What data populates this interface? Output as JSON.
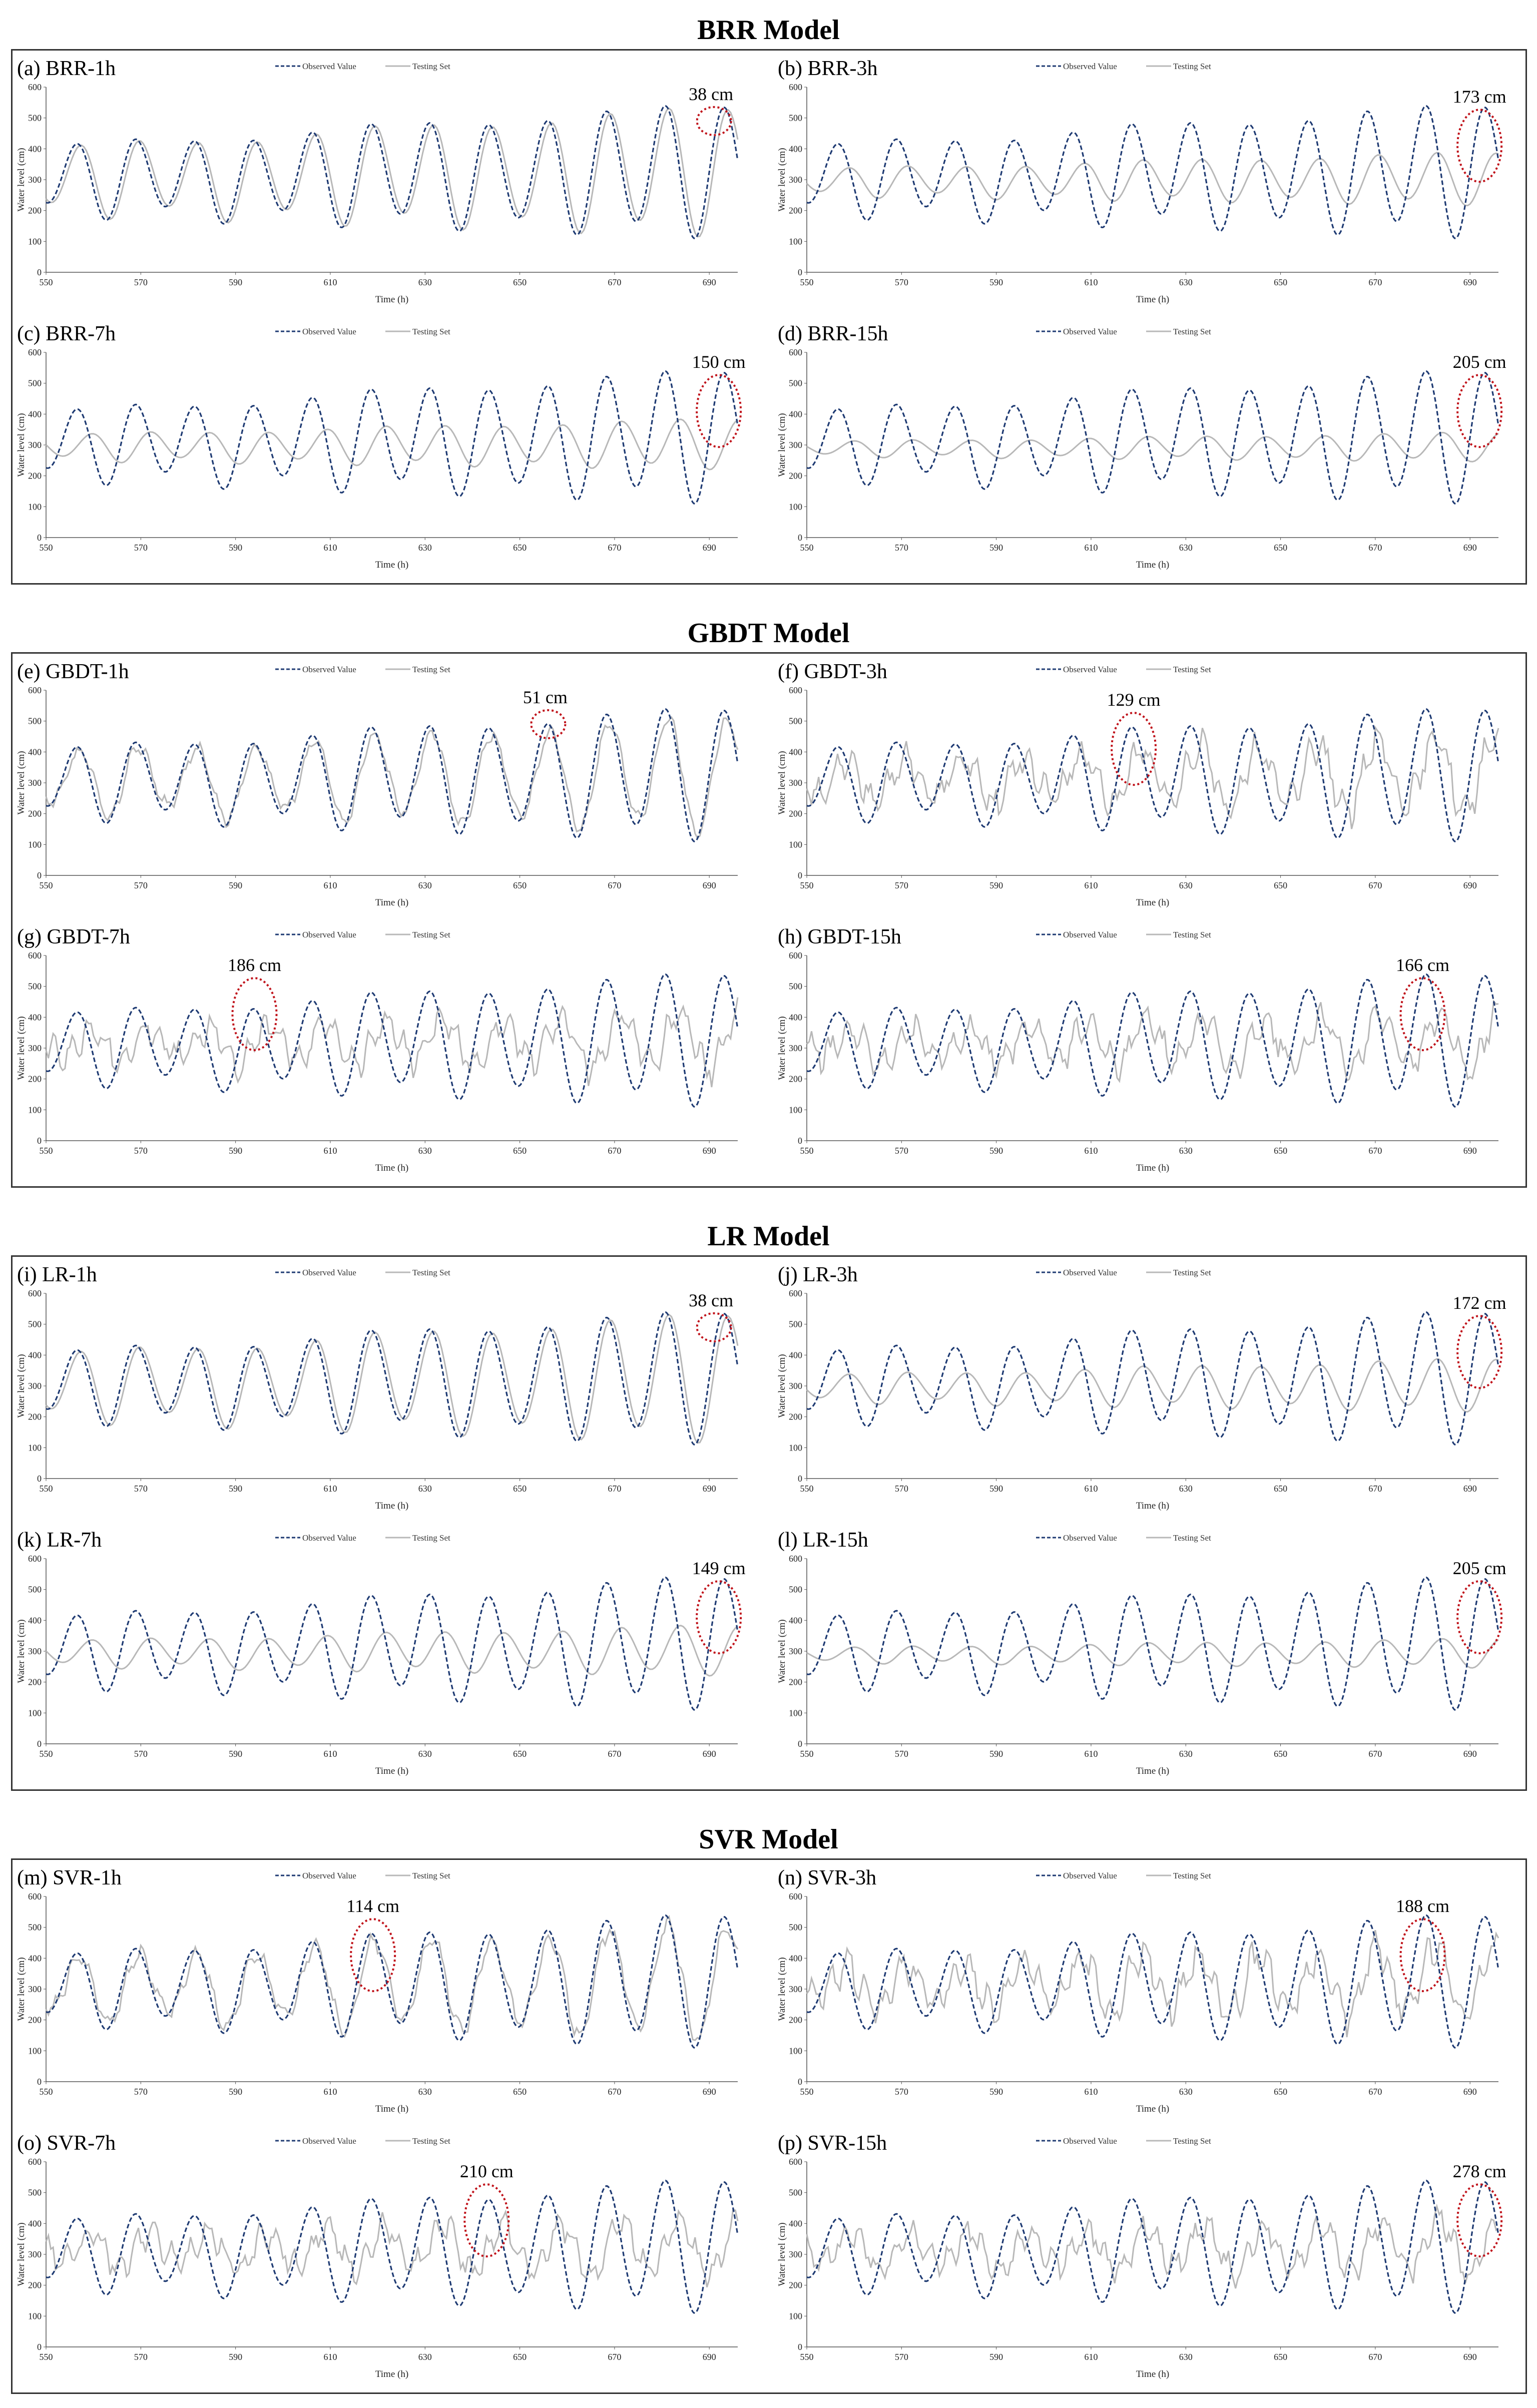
{
  "colors": {
    "observed": "#1f3b73",
    "testing": "#b8b8b8",
    "circle": "#c0131b",
    "axis": "#555555"
  },
  "groups": [
    {
      "title": "BRR Model"
    },
    {
      "title": "GBDT Model"
    },
    {
      "title": "LR Model"
    },
    {
      "title": "SVR Model"
    }
  ],
  "legend": {
    "observed": "Observed Value",
    "testing": "Testing Set"
  },
  "chart_data": [
    {
      "type": "line",
      "id": "a",
      "label": "(a) BRR-1h",
      "title": "BRR-1h",
      "group": "BRR Model",
      "horizon_h": 1,
      "xlabel": "Time (h)",
      "ylabel": "Water level (cm)",
      "xlim": [
        550,
        696
      ],
      "ylim": [
        0,
        600
      ],
      "xticks": [
        550,
        570,
        590,
        610,
        630,
        650,
        670,
        690
      ],
      "yticks": [
        0,
        100,
        200,
        300,
        400,
        500,
        600
      ],
      "series": [
        {
          "name": "Observed Value",
          "pattern": "tidal cycle ~12.4 h, peaks ≈400–540 cm, troughs ≈130–210 cm"
        },
        {
          "name": "Testing Set",
          "pattern": "tracks observed closely"
        }
      ],
      "annotation": {
        "text": "38 cm",
        "x": 691
      }
    },
    {
      "type": "line",
      "id": "b",
      "label": "(b) BRR-3h",
      "title": "BRR-3h",
      "group": "BRR Model",
      "horizon_h": 3,
      "xlabel": "Time (h)",
      "ylabel": "Water level (cm)",
      "xlim": [
        550,
        696
      ],
      "ylim": [
        0,
        600
      ],
      "xticks": [
        550,
        570,
        590,
        610,
        630,
        650,
        670,
        690
      ],
      "yticks": [
        0,
        100,
        200,
        300,
        400,
        500,
        600
      ],
      "series": [
        {
          "name": "Observed Value",
          "pattern": "tidal cycle"
        },
        {
          "name": "Testing Set",
          "pattern": "damped, lagged"
        }
      ],
      "annotation": {
        "text": "173 cm",
        "x": 692
      }
    },
    {
      "type": "line",
      "id": "c",
      "label": "(c) BRR-7h",
      "title": "BRR-7h",
      "group": "BRR Model",
      "horizon_h": 7,
      "xlabel": "Time (h)",
      "ylabel": "Water level (cm)",
      "xlim": [
        550,
        696
      ],
      "ylim": [
        0,
        600
      ],
      "xticks": [
        550,
        570,
        590,
        610,
        630,
        650,
        670,
        690
      ],
      "yticks": [
        0,
        100,
        200,
        300,
        400,
        500,
        600
      ],
      "series": [
        {
          "name": "Observed Value",
          "pattern": "tidal cycle"
        },
        {
          "name": "Testing Set",
          "pattern": "damped, lagged"
        }
      ],
      "annotation": {
        "text": "150 cm",
        "x": 692
      }
    },
    {
      "type": "line",
      "id": "d",
      "label": "(d) BRR-15h",
      "title": "BRR-15h",
      "group": "BRR Model",
      "horizon_h": 15,
      "xlabel": "Time (h)",
      "ylabel": "Water level (cm)",
      "xlim": [
        550,
        696
      ],
      "ylim": [
        0,
        600
      ],
      "xticks": [
        550,
        570,
        590,
        610,
        630,
        650,
        670,
        690
      ],
      "yticks": [
        0,
        100,
        200,
        300,
        400,
        500,
        600
      ],
      "series": [
        {
          "name": "Observed Value",
          "pattern": "tidal cycle"
        },
        {
          "name": "Testing Set",
          "pattern": "nearly flat around 290 cm"
        }
      ],
      "annotation": {
        "text": "205 cm",
        "x": 692
      }
    },
    {
      "type": "line",
      "id": "e",
      "label": "(e) GBDT-1h",
      "title": "GBDT-1h",
      "group": "GBDT Model",
      "horizon_h": 1,
      "xlabel": "Time (h)",
      "ylabel": "Water level (cm)",
      "xlim": [
        550,
        696
      ],
      "ylim": [
        0,
        600
      ],
      "xticks": [
        550,
        570,
        590,
        610,
        630,
        650,
        670,
        690
      ],
      "yticks": [
        0,
        100,
        200,
        300,
        400,
        500,
        600
      ],
      "series": [
        {
          "name": "Observed Value",
          "pattern": "tidal cycle"
        },
        {
          "name": "Testing Set",
          "pattern": "close with noise"
        }
      ],
      "annotation": {
        "text": "51 cm",
        "x": 656
      }
    },
    {
      "type": "line",
      "id": "f",
      "label": "(f) GBDT-3h",
      "title": "GBDT-3h",
      "group": "GBDT Model",
      "horizon_h": 3,
      "xlabel": "Time (h)",
      "ylabel": "Water level (cm)",
      "xlim": [
        550,
        696
      ],
      "ylim": [
        0,
        600
      ],
      "xticks": [
        550,
        570,
        590,
        610,
        630,
        650,
        670,
        690
      ],
      "yticks": [
        0,
        100,
        200,
        300,
        400,
        500,
        600
      ],
      "series": [
        {
          "name": "Observed Value",
          "pattern": "tidal cycle"
        },
        {
          "name": "Testing Set",
          "pattern": "noisy"
        }
      ],
      "annotation": {
        "text": "129 cm",
        "x": 619
      }
    },
    {
      "type": "line",
      "id": "g",
      "label": "(g) GBDT-7h",
      "title": "GBDT-7h",
      "group": "GBDT Model",
      "horizon_h": 7,
      "xlabel": "Time (h)",
      "ylabel": "Water level (cm)",
      "xlim": [
        550,
        696
      ],
      "ylim": [
        0,
        600
      ],
      "xticks": [
        550,
        570,
        590,
        610,
        630,
        650,
        670,
        690
      ],
      "yticks": [
        0,
        100,
        200,
        300,
        400,
        500,
        600
      ],
      "series": [
        {
          "name": "Observed Value",
          "pattern": "tidal cycle"
        },
        {
          "name": "Testing Set",
          "pattern": "noisy, damped"
        }
      ],
      "annotation": {
        "text": "186 cm",
        "x": 594
      }
    },
    {
      "type": "line",
      "id": "h",
      "label": "(h) GBDT-15h",
      "title": "GBDT-15h",
      "group": "GBDT Model",
      "horizon_h": 15,
      "xlabel": "Time (h)",
      "ylabel": "Water level (cm)",
      "xlim": [
        550,
        696
      ],
      "ylim": [
        0,
        600
      ],
      "xticks": [
        550,
        570,
        590,
        610,
        630,
        650,
        670,
        690
      ],
      "yticks": [
        0,
        100,
        200,
        300,
        400,
        500,
        600
      ],
      "series": [
        {
          "name": "Observed Value",
          "pattern": "tidal cycle"
        },
        {
          "name": "Testing Set",
          "pattern": "noisy"
        }
      ],
      "annotation": {
        "text": "166 cm",
        "x": 680
      }
    },
    {
      "type": "line",
      "id": "i",
      "label": "(i) LR-1h",
      "title": "LR-1h",
      "group": "LR Model",
      "horizon_h": 1,
      "xlabel": "Time (h)",
      "ylabel": "Water level (cm)",
      "xlim": [
        550,
        696
      ],
      "ylim": [
        0,
        600
      ],
      "xticks": [
        550,
        570,
        590,
        610,
        630,
        650,
        670,
        690
      ],
      "yticks": [
        0,
        100,
        200,
        300,
        400,
        500,
        600
      ],
      "series": [
        {
          "name": "Observed Value",
          "pattern": "tidal cycle"
        },
        {
          "name": "Testing Set",
          "pattern": "tracks observed closely"
        }
      ],
      "annotation": {
        "text": "38 cm",
        "x": 691
      }
    },
    {
      "type": "line",
      "id": "j",
      "label": "(j) LR-3h",
      "title": "LR-3h",
      "group": "LR Model",
      "horizon_h": 3,
      "xlabel": "Time (h)",
      "ylabel": "Water level (cm)",
      "xlim": [
        550,
        696
      ],
      "ylim": [
        0,
        600
      ],
      "xticks": [
        550,
        570,
        590,
        610,
        630,
        650,
        670,
        690
      ],
      "yticks": [
        0,
        100,
        200,
        300,
        400,
        500,
        600
      ],
      "series": [
        {
          "name": "Observed Value",
          "pattern": "tidal cycle"
        },
        {
          "name": "Testing Set",
          "pattern": "damped, lagged"
        }
      ],
      "annotation": {
        "text": "172 cm",
        "x": 692
      }
    },
    {
      "type": "line",
      "id": "k",
      "label": "(k) LR-7h",
      "title": "LR-7h",
      "group": "LR Model",
      "horizon_h": 7,
      "xlabel": "Time (h)",
      "ylabel": "Water level (cm)",
      "xlim": [
        550,
        696
      ],
      "ylim": [
        0,
        600
      ],
      "xticks": [
        550,
        570,
        590,
        610,
        630,
        650,
        670,
        690
      ],
      "yticks": [
        0,
        100,
        200,
        300,
        400,
        500,
        600
      ],
      "series": [
        {
          "name": "Observed Value",
          "pattern": "tidal cycle"
        },
        {
          "name": "Testing Set",
          "pattern": "damped, lagged"
        }
      ],
      "annotation": {
        "text": "149 cm",
        "x": 692
      }
    },
    {
      "type": "line",
      "id": "l",
      "label": "(l) LR-15h",
      "title": "LR-15h",
      "group": "LR Model",
      "horizon_h": 15,
      "xlabel": "Time (h)",
      "ylabel": "Water level (cm)",
      "xlim": [
        550,
        696
      ],
      "ylim": [
        0,
        600
      ],
      "xticks": [
        550,
        570,
        590,
        610,
        630,
        650,
        670,
        690
      ],
      "yticks": [
        0,
        100,
        200,
        300,
        400,
        500,
        600
      ],
      "series": [
        {
          "name": "Observed Value",
          "pattern": "tidal cycle"
        },
        {
          "name": "Testing Set",
          "pattern": "nearly flat around 290 cm"
        }
      ],
      "annotation": {
        "text": "205 cm",
        "x": 692
      }
    },
    {
      "type": "line",
      "id": "m",
      "label": "(m) SVR-1h",
      "title": "SVR-1h",
      "group": "SVR Model",
      "horizon_h": 1,
      "xlabel": "Time (h)",
      "ylabel": "Water level (cm)",
      "xlim": [
        550,
        696
      ],
      "ylim": [
        0,
        600
      ],
      "xticks": [
        550,
        570,
        590,
        610,
        630,
        650,
        670,
        690
      ],
      "yticks": [
        0,
        100,
        200,
        300,
        400,
        500,
        600
      ],
      "series": [
        {
          "name": "Observed Value",
          "pattern": "tidal cycle"
        },
        {
          "name": "Testing Set",
          "pattern": "noisy"
        }
      ],
      "annotation": {
        "text": "114 cm",
        "x": 619
      }
    },
    {
      "type": "line",
      "id": "n",
      "label": "(n) SVR-3h",
      "title": "SVR-3h",
      "group": "SVR Model",
      "horizon_h": 3,
      "xlabel": "Time (h)",
      "ylabel": "Water level (cm)",
      "xlim": [
        550,
        696
      ],
      "ylim": [
        0,
        600
      ],
      "xticks": [
        550,
        570,
        590,
        610,
        630,
        650,
        670,
        690
      ],
      "yticks": [
        0,
        100,
        200,
        300,
        400,
        500,
        600
      ],
      "series": [
        {
          "name": "Observed Value",
          "pattern": "tidal cycle"
        },
        {
          "name": "Testing Set",
          "pattern": "noisy"
        }
      ],
      "annotation": {
        "text": "188 cm",
        "x": 680
      }
    },
    {
      "type": "line",
      "id": "o",
      "label": "(o) SVR-7h",
      "title": "SVR-7h",
      "group": "SVR Model",
      "horizon_h": 7,
      "xlabel": "Time (h)",
      "ylabel": "Water level (cm)",
      "xlim": [
        550,
        696
      ],
      "ylim": [
        0,
        600
      ],
      "xticks": [
        550,
        570,
        590,
        610,
        630,
        650,
        670,
        690
      ],
      "yticks": [
        0,
        100,
        200,
        300,
        400,
        500,
        600
      ],
      "series": [
        {
          "name": "Observed Value",
          "pattern": "tidal cycle"
        },
        {
          "name": "Testing Set",
          "pattern": "noisy, damped"
        }
      ],
      "annotation": {
        "text": "210 cm",
        "x": 643
      }
    },
    {
      "type": "line",
      "id": "p",
      "label": "(p) SVR-15h",
      "title": "SVR-15h",
      "group": "SVR Model",
      "horizon_h": 15,
      "xlabel": "Time (h)",
      "ylabel": "Water level (cm)",
      "xlim": [
        550,
        696
      ],
      "ylim": [
        0,
        600
      ],
      "xticks": [
        550,
        570,
        590,
        610,
        630,
        650,
        670,
        690
      ],
      "yticks": [
        0,
        100,
        200,
        300,
        400,
        500,
        600
      ],
      "series": [
        {
          "name": "Observed Value",
          "pattern": "tidal cycle"
        },
        {
          "name": "Testing Set",
          "pattern": "noisy"
        }
      ],
      "annotation": {
        "text": "278 cm",
        "x": 692
      }
    }
  ]
}
